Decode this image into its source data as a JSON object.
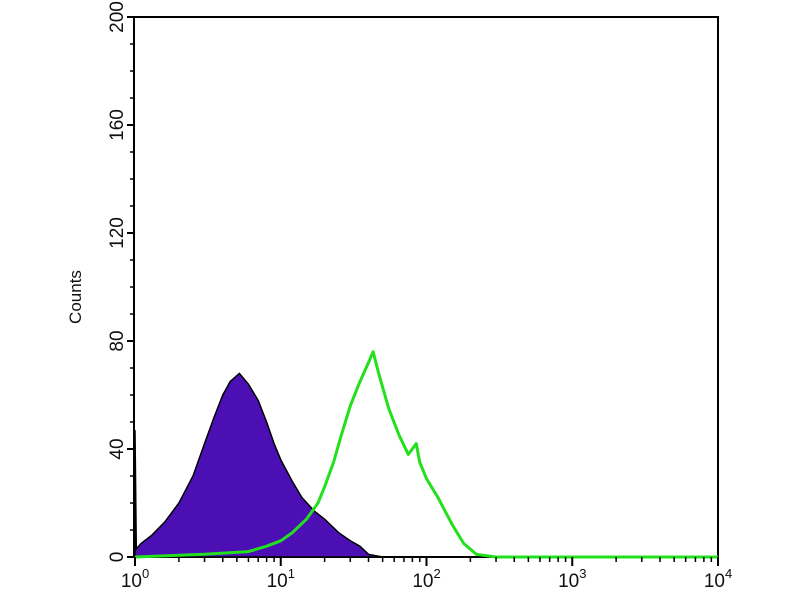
{
  "chart_data": {
    "type": "area",
    "title": "",
    "xlabel": "",
    "ylabel": "Counts",
    "xscale": "log",
    "xlim": [
      1,
      10000
    ],
    "ylim": [
      0,
      200
    ],
    "grid": false,
    "x_ticks": [
      {
        "base": "10",
        "exp": "0",
        "value": 1
      },
      {
        "base": "10",
        "exp": "1",
        "value": 10
      },
      {
        "base": "10",
        "exp": "2",
        "value": 100
      },
      {
        "base": "10",
        "exp": "3",
        "value": 1000
      },
      {
        "base": "10",
        "exp": "4",
        "value": 10000
      }
    ],
    "y_ticks": [
      "0",
      "40",
      "80",
      "120",
      "160",
      "200"
    ],
    "series": [
      {
        "style": "filled",
        "color": "#4b0fb4",
        "edge_color": "#000000",
        "points": [
          [
            1.0,
            47
          ],
          [
            1.02,
            3
          ],
          [
            1.1,
            5
          ],
          [
            1.3,
            8
          ],
          [
            1.6,
            13
          ],
          [
            2.0,
            20
          ],
          [
            2.5,
            30
          ],
          [
            3.0,
            42
          ],
          [
            3.5,
            52
          ],
          [
            4.0,
            60
          ],
          [
            4.5,
            65
          ],
          [
            5.2,
            68
          ],
          [
            6.0,
            64
          ],
          [
            7.0,
            58
          ],
          [
            8.0,
            50
          ],
          [
            9.0,
            42
          ],
          [
            10,
            36
          ],
          [
            12,
            28
          ],
          [
            14,
            22
          ],
          [
            17,
            17
          ],
          [
            20,
            14
          ],
          [
            25,
            9
          ],
          [
            30,
            6
          ],
          [
            35,
            4
          ],
          [
            40,
            1
          ],
          [
            50,
            0
          ]
        ]
      },
      {
        "style": "line",
        "color": "#22e01c",
        "points": [
          [
            1,
            0
          ],
          [
            3,
            1
          ],
          [
            6,
            2
          ],
          [
            8,
            4
          ],
          [
            10,
            6
          ],
          [
            12,
            9
          ],
          [
            15,
            14
          ],
          [
            18,
            20
          ],
          [
            20,
            26
          ],
          [
            23,
            35
          ],
          [
            26,
            45
          ],
          [
            30,
            56
          ],
          [
            35,
            65
          ],
          [
            40,
            72
          ],
          [
            43,
            76
          ],
          [
            47,
            68
          ],
          [
            55,
            55
          ],
          [
            65,
            45
          ],
          [
            75,
            38
          ],
          [
            85,
            42
          ],
          [
            90,
            35
          ],
          [
            100,
            29
          ],
          [
            120,
            22
          ],
          [
            150,
            12
          ],
          [
            180,
            5
          ],
          [
            220,
            1
          ],
          [
            300,
            0
          ],
          [
            10000,
            0
          ]
        ]
      }
    ]
  }
}
